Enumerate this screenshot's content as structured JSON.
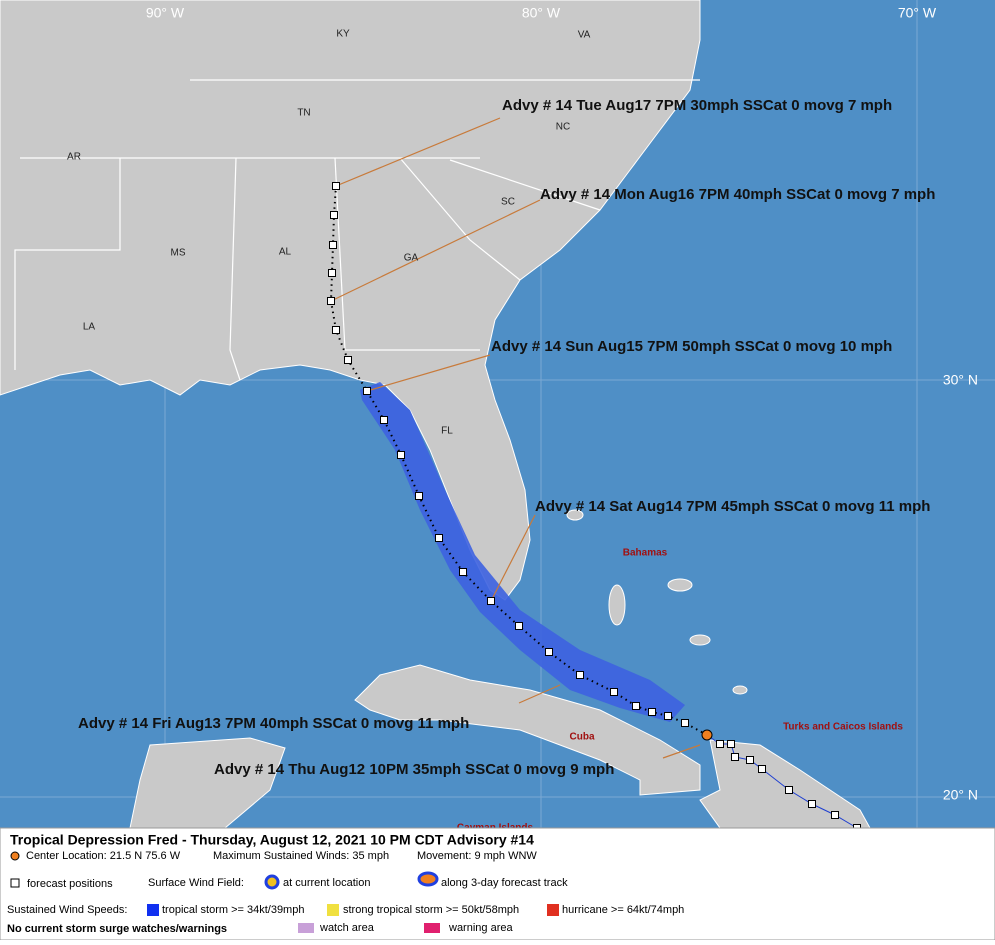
{
  "map": {
    "grid_labels": {
      "lon": [
        "90° W",
        "80° W",
        "70° W"
      ],
      "lat": [
        "30° N",
        "20° N"
      ]
    },
    "region_labels": [
      "KY",
      "VA",
      "TN",
      "NC",
      "AR",
      "SC",
      "MS",
      "AL",
      "GA",
      "LA",
      "FL"
    ],
    "place_labels": [
      "Bahamas",
      "Cuba",
      "Turks and Caicos Islands",
      "Cayman Islands"
    ],
    "forecast_labels": [
      "Advy # 14 Tue Aug17 7PM  30mph SSCat 0 movg 7 mph",
      "Advy # 14 Mon Aug16 7PM  40mph SSCat 0 movg 7 mph",
      "Advy # 14 Sun Aug15 7PM  50mph SSCat 0 movg 10 mph",
      "Advy # 14 Sat Aug14 7PM  45mph SSCat 0 movg 11 mph",
      "Advy # 14 Fri Aug13 7PM  40mph SSCat 0 movg 11 mph",
      "Advy # 14 Thu Aug12 10PM  35mph SSCat 0 movg 9 mph"
    ]
  },
  "info": {
    "title": "Tropical Depression Fred  -  Thursday, August 12, 2021  10 PM CDT  Advisory #14",
    "center": "Center Location: 21.5 N  75.6 W",
    "winds": "Maximum Sustained Winds: 35 mph",
    "movement": "Movement: 9 mph WNW"
  },
  "legend": {
    "forecast_positions": "forecast positions",
    "wind_field": "Surface Wind Field:",
    "current": "at current location",
    "track": "along 3-day forecast track",
    "speeds": "Sustained Wind Speeds:",
    "ts": "tropical storm >= 34kt/39mph",
    "sts": "strong tropical storm >= 50kt/58mph",
    "hu": "hurricane >= 64kt/74mph",
    "surge": "No current storm surge watches/warnings",
    "watch": "watch area",
    "warning": "warning area"
  }
}
